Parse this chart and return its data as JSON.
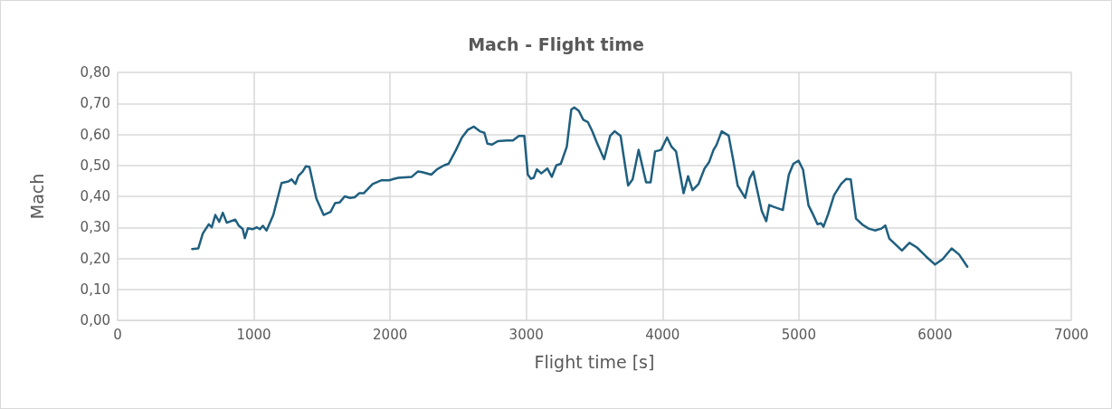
{
  "chart_data": {
    "type": "line",
    "title": "Mach - Flight time",
    "xlabel": "Flight time [s]",
    "ylabel": "Mach",
    "grid": true,
    "marker": "none",
    "line_style": "solid",
    "xlim": [
      0,
      7000
    ],
    "xticks": [
      0,
      1000,
      2000,
      3000,
      4000,
      5000,
      6000,
      7000
    ],
    "ylim": [
      0,
      0.8
    ],
    "yticks": [
      {
        "value": 0,
        "label": "0,00"
      },
      {
        "value": 0.1,
        "label": "0,10"
      },
      {
        "value": 0.2,
        "label": "0,20"
      },
      {
        "value": 0.3,
        "label": "0,30"
      },
      {
        "value": 0.4,
        "label": "0,40"
      },
      {
        "value": 0.5,
        "label": "0,50"
      },
      {
        "value": 0.6,
        "label": "0,60"
      },
      {
        "value": 0.7,
        "label": "0,70"
      },
      {
        "value": 0.8,
        "label": "0,80"
      }
    ],
    "series": [
      {
        "color": "#1f5f7f",
        "x": [
          547,
          592,
          625,
          669,
          691,
          717,
          746,
          772,
          801,
          863,
          890,
          918,
          934,
          956,
          989,
          1022,
          1044,
          1066,
          1093,
          1143,
          1166,
          1203,
          1254,
          1276,
          1305,
          1327,
          1358,
          1382,
          1408,
          1459,
          1512,
          1563,
          1596,
          1629,
          1667,
          1706,
          1740,
          1773,
          1806,
          1872,
          1938,
          1993,
          2026,
          2060,
          2159,
          2203,
          2236,
          2302,
          2347,
          2396,
          2429,
          2484,
          2527,
          2571,
          2615,
          2659,
          2692,
          2714,
          2747,
          2791,
          2857,
          2901,
          2945,
          2985,
          3011,
          3033,
          3055,
          3077,
          3110,
          3154,
          3187,
          3220,
          3253,
          3297,
          3330,
          3352,
          3385,
          3418,
          3451,
          3484,
          3516,
          3571,
          3615,
          3648,
          3692,
          3747,
          3780,
          3824,
          3879,
          3912,
          3945,
          3989,
          4033,
          4066,
          4099,
          4154,
          4187,
          4220,
          4264,
          4308,
          4341,
          4374,
          4396,
          4434,
          4485,
          4518,
          4551,
          4606,
          4639,
          4666,
          4695,
          4728,
          4761,
          4783,
          4816,
          4883,
          4927,
          4960,
          4998,
          5031,
          5071,
          5104,
          5137,
          5164,
          5181,
          5215,
          5259,
          5310,
          5347,
          5381,
          5420,
          5469,
          5513,
          5558,
          5606,
          5635,
          5664,
          5757,
          5812,
          5867,
          5934,
          6000,
          6055,
          6122,
          6177,
          6237
        ],
        "values": [
          0.23,
          0.232,
          0.28,
          0.31,
          0.3,
          0.34,
          0.318,
          0.347,
          0.315,
          0.325,
          0.305,
          0.295,
          0.265,
          0.297,
          0.294,
          0.3,
          0.294,
          0.305,
          0.29,
          0.34,
          0.38,
          0.443,
          0.448,
          0.455,
          0.44,
          0.466,
          0.48,
          0.497,
          0.495,
          0.393,
          0.34,
          0.35,
          0.378,
          0.38,
          0.4,
          0.395,
          0.397,
          0.41,
          0.41,
          0.44,
          0.452,
          0.452,
          0.456,
          0.46,
          0.463,
          0.48,
          0.478,
          0.47,
          0.488,
          0.5,
          0.505,
          0.55,
          0.59,
          0.615,
          0.625,
          0.61,
          0.605,
          0.57,
          0.567,
          0.578,
          0.58,
          0.58,
          0.595,
          0.595,
          0.47,
          0.457,
          0.46,
          0.487,
          0.474,
          0.49,
          0.463,
          0.5,
          0.505,
          0.56,
          0.68,
          0.687,
          0.676,
          0.647,
          0.64,
          0.61,
          0.575,
          0.52,
          0.595,
          0.61,
          0.595,
          0.435,
          0.455,
          0.55,
          0.445,
          0.445,
          0.545,
          0.55,
          0.59,
          0.56,
          0.545,
          0.41,
          0.465,
          0.42,
          0.44,
          0.49,
          0.51,
          0.55,
          0.566,
          0.61,
          0.596,
          0.518,
          0.435,
          0.395,
          0.458,
          0.48,
          0.42,
          0.353,
          0.32,
          0.372,
          0.366,
          0.356,
          0.47,
          0.505,
          0.515,
          0.486,
          0.371,
          0.342,
          0.31,
          0.313,
          0.302,
          0.342,
          0.404,
          0.44,
          0.456,
          0.455,
          0.328,
          0.308,
          0.296,
          0.29,
          0.296,
          0.306,
          0.264,
          0.225,
          0.25,
          0.235,
          0.206,
          0.18,
          0.197,
          0.232,
          0.212,
          0.173
        ]
      }
    ]
  }
}
